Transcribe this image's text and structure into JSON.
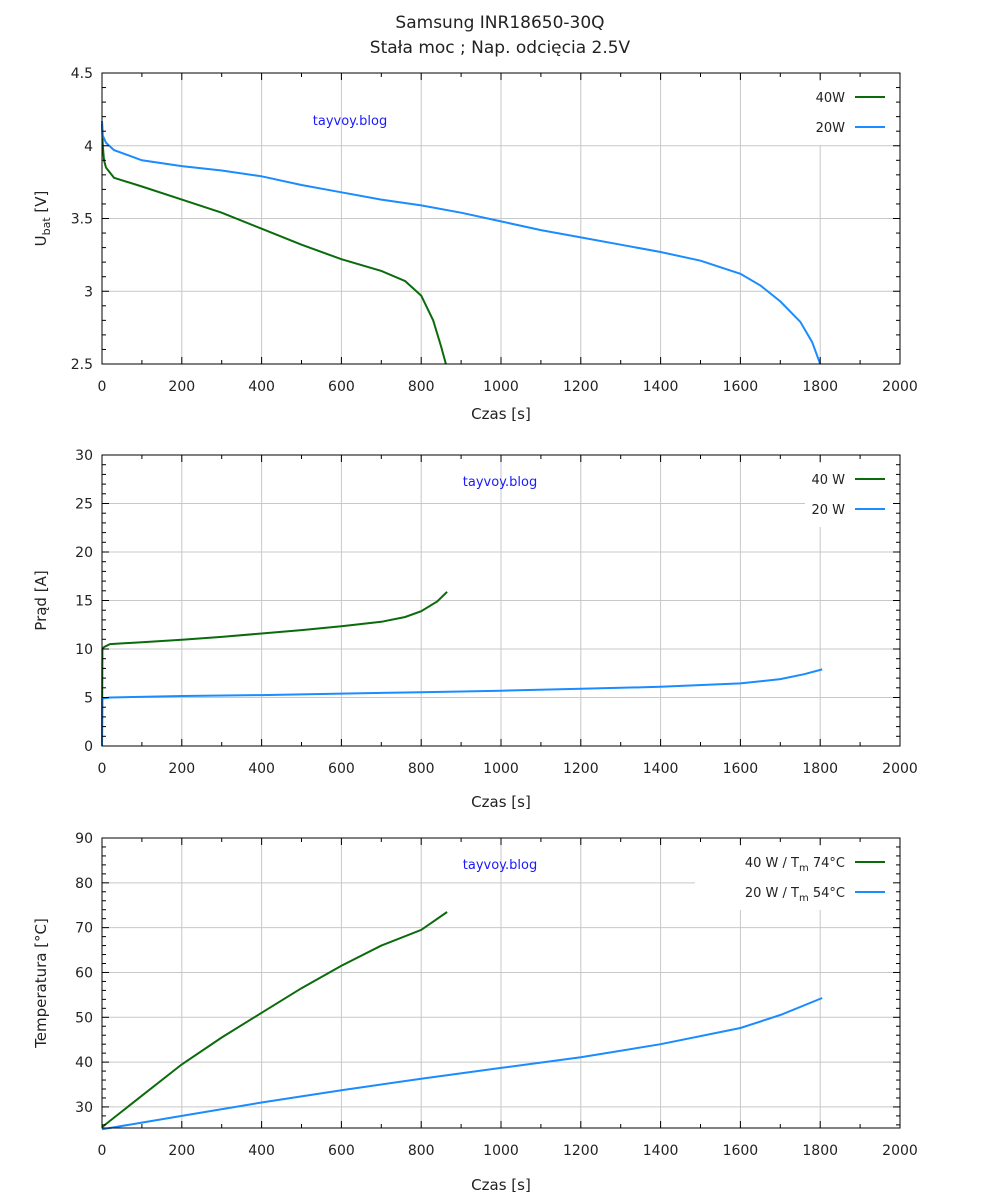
{
  "title": [
    "Samsung INR18650-30Q",
    "Stała moc  ;  Nap. odcięcia 2.5V"
  ],
  "colors": {
    "green": "#0b6b0b",
    "blue": "#1a8cff",
    "grid": "#c8c8c8",
    "watermark": "#1a1aff"
  },
  "chart_data": [
    {
      "type": "line",
      "ylabel": "U",
      "ylabel_sub": "bat",
      "ylabel_suffix": " [V]",
      "xlabel": "Czas [s]",
      "watermark": "tayvoy.blog",
      "xlim": [
        0,
        2000
      ],
      "ylim": [
        2.5,
        4.5
      ],
      "xticks": [
        0,
        200,
        400,
        600,
        800,
        1000,
        1200,
        1400,
        1600,
        1800,
        2000
      ],
      "yticks": [
        2.5,
        3,
        3.5,
        4,
        4.5
      ],
      "ytick_labels": [
        "2.5",
        "3",
        "3.5",
        "4",
        "4.5"
      ],
      "grid": true,
      "legend_position": "top-right",
      "series": [
        {
          "name": "40W",
          "color": "green",
          "x": [
            0,
            2,
            5,
            10,
            30,
            100,
            200,
            300,
            400,
            500,
            600,
            700,
            760,
            800,
            830,
            850,
            862
          ],
          "y": [
            4.15,
            4.0,
            3.9,
            3.85,
            3.78,
            3.72,
            3.63,
            3.54,
            3.43,
            3.32,
            3.22,
            3.14,
            3.07,
            2.97,
            2.8,
            2.62,
            2.5
          ]
        },
        {
          "name": "20W",
          "color": "blue",
          "x": [
            0,
            2,
            10,
            30,
            100,
            200,
            300,
            400,
            500,
            600,
            700,
            800,
            900,
            1000,
            1100,
            1200,
            1300,
            1400,
            1500,
            1600,
            1650,
            1700,
            1750,
            1780,
            1800
          ],
          "y": [
            4.17,
            4.07,
            4.02,
            3.97,
            3.9,
            3.86,
            3.83,
            3.79,
            3.73,
            3.68,
            3.63,
            3.59,
            3.54,
            3.48,
            3.42,
            3.37,
            3.32,
            3.27,
            3.21,
            3.12,
            3.04,
            2.93,
            2.79,
            2.65,
            2.5
          ]
        }
      ]
    },
    {
      "type": "line",
      "ylabel": "Prąd [A]",
      "ylabel_sub": "",
      "ylabel_suffix": "",
      "xlabel": "Czas [s]",
      "watermark": "tayvoy.blog",
      "xlim": [
        0,
        2000
      ],
      "ylim": [
        0,
        30
      ],
      "xticks": [
        0,
        200,
        400,
        600,
        800,
        1000,
        1200,
        1400,
        1600,
        1800,
        2000
      ],
      "yticks": [
        0,
        5,
        10,
        15,
        20,
        25,
        30
      ],
      "ytick_labels": [
        "0",
        "5",
        "10",
        "15",
        "20",
        "25",
        "30"
      ],
      "grid": true,
      "legend_position": "top-right",
      "series": [
        {
          "name": "40 W",
          "color": "green",
          "x": [
            0,
            1,
            5,
            20,
            100,
            200,
            300,
            400,
            500,
            600,
            700,
            760,
            800,
            840,
            865
          ],
          "y": [
            0,
            10,
            10.2,
            10.5,
            10.7,
            10.95,
            11.25,
            11.6,
            11.95,
            12.35,
            12.8,
            13.3,
            13.9,
            14.9,
            15.9
          ]
        },
        {
          "name": "20 W",
          "color": "blue",
          "x": [
            0,
            1,
            20,
            200,
            400,
            600,
            800,
            1000,
            1200,
            1400,
            1600,
            1700,
            1760,
            1805
          ],
          "y": [
            0,
            4.9,
            5.0,
            5.15,
            5.25,
            5.4,
            5.55,
            5.7,
            5.9,
            6.1,
            6.45,
            6.9,
            7.4,
            7.9
          ]
        }
      ]
    },
    {
      "type": "line",
      "ylabel": "Temperatura [°C]",
      "ylabel_sub": "",
      "ylabel_suffix": "",
      "xlabel": "Czas [s]",
      "watermark": "tayvoy.blog",
      "xlim": [
        0,
        2000
      ],
      "ylim": [
        25.3,
        90
      ],
      "xticks": [
        0,
        200,
        400,
        600,
        800,
        1000,
        1200,
        1400,
        1600,
        1800,
        2000
      ],
      "yticks": [
        30,
        40,
        50,
        60,
        70,
        80,
        90
      ],
      "ytick_labels": [
        "30",
        "40",
        "50",
        "60",
        "70",
        "80",
        "90"
      ],
      "grid": true,
      "legend_position": "top-right",
      "series": [
        {
          "name": "40 W  / T",
          "name_sub": "m",
          "name_suffix": " 74°C",
          "color": "green",
          "x": [
            0,
            50,
            100,
            200,
            300,
            400,
            500,
            600,
            700,
            800,
            865
          ],
          "y": [
            25.5,
            29,
            32.5,
            39.5,
            45.5,
            51,
            56.5,
            61.5,
            66,
            69.5,
            73.5
          ]
        },
        {
          "name": "20 W  / T",
          "name_sub": "m",
          "name_suffix": " 54°C",
          "color": "blue",
          "x": [
            0,
            100,
            200,
            400,
            600,
            800,
            1000,
            1200,
            1400,
            1600,
            1700,
            1805
          ],
          "y": [
            25,
            26.5,
            28,
            31,
            33.7,
            36.3,
            38.7,
            41.1,
            44,
            47.6,
            50.5,
            54.3
          ]
        }
      ]
    }
  ]
}
